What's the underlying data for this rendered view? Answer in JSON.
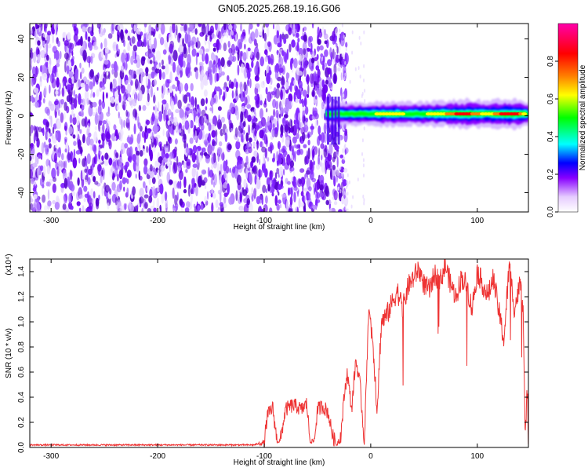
{
  "title": "GN05.2025.268.19.16.G06",
  "chart_data": [
    {
      "type": "heatmap",
      "title": "GN05.2025.268.19.16.G06",
      "xlabel": "Height of straight line (km)",
      "ylabel": "Frequency (Hz)",
      "xlim": [
        -320,
        148
      ],
      "ylim": [
        -50,
        48
      ],
      "xticks": [
        -300,
        -200,
        -100,
        0,
        100
      ],
      "yticks": [
        -40,
        -20,
        0,
        20,
        40
      ],
      "colorbar": {
        "label": "Normalized spectral amplitude",
        "range": [
          0,
          1
        ],
        "ticks": [
          "0.0",
          "0.2",
          "0.4",
          "0.6",
          "0.8"
        ],
        "colors": [
          "#ffffff",
          "#cc99ff",
          "#8800ff",
          "#0000ff",
          "#00ffff",
          "#00ff00",
          "#ffff00",
          "#ff8000",
          "#ff0000",
          "#ff00aa"
        ]
      },
      "regions": [
        {
          "x_range": [
            -320,
            -30
          ],
          "description_value": 0.2
        },
        {
          "x_range": [
            -30,
            148
          ],
          "center_frequency_hz": 1,
          "band_halfwidth_hz": 2
        }
      ],
      "ridge": {
        "x": [
          -42,
          -30,
          -20,
          -10,
          0,
          10,
          20,
          30,
          40,
          50,
          60,
          70,
          80,
          90,
          100,
          110,
          120,
          130,
          140,
          148
        ],
        "amplitude": [
          0.45,
          0.55,
          0.5,
          0.6,
          0.55,
          0.65,
          0.62,
          0.6,
          0.55,
          0.58,
          0.7,
          0.8,
          0.9,
          0.95,
          0.85,
          0.7,
          0.9,
          0.95,
          0.9,
          0.5
        ]
      }
    },
    {
      "type": "line",
      "xlabel": "Height of straight line (km)",
      "ylabel": "SNR (10 * v/v)",
      "ylabel_multiplier": "(x10⁴)",
      "xlim": [
        -320,
        148
      ],
      "ylim": [
        0,
        1.5
      ],
      "xticks": [
        -300,
        -200,
        -100,
        0,
        100
      ],
      "yticks": [
        "0.0",
        "0.2",
        "0.4",
        "0.6",
        "0.8",
        "1.0",
        "1.2",
        "1.4"
      ],
      "color": "#ee3333",
      "series": [
        {
          "name": "SNR",
          "x": [
            -320,
            -110,
            -100,
            -97,
            -92,
            -88,
            -85,
            -80,
            -75,
            -70,
            -65,
            -60,
            -57,
            -53,
            -50,
            -45,
            -40,
            -36,
            -32,
            -28,
            -25,
            -22,
            -18,
            -14,
            -10,
            -6,
            -2,
            2,
            6,
            10,
            15,
            20,
            25,
            30,
            35,
            40,
            45,
            50,
            55,
            60,
            65,
            70,
            75,
            80,
            85,
            90,
            95,
            100,
            105,
            110,
            115,
            120,
            125,
            130,
            135,
            140,
            143,
            145,
            147,
            148
          ],
          "y": [
            0.02,
            0.02,
            0.04,
            0.25,
            0.32,
            0.05,
            0.05,
            0.3,
            0.33,
            0.33,
            0.3,
            0.35,
            0.05,
            0.05,
            0.3,
            0.33,
            0.28,
            0.1,
            0.02,
            0.1,
            0.4,
            0.6,
            0.3,
            0.7,
            0.5,
            0.03,
            1.1,
            0.85,
            0.3,
            1.0,
            1.05,
            1.15,
            1.25,
            1.1,
            1.28,
            1.35,
            1.42,
            1.3,
            1.25,
            1.38,
            1.32,
            1.45,
            1.3,
            1.2,
            1.35,
            1.3,
            1.1,
            1.4,
            1.3,
            1.2,
            1.35,
            1.1,
            0.85,
            1.45,
            1.1,
            1.3,
            1.15,
            0.02,
            0.5,
            0.05
          ]
        }
      ]
    }
  ]
}
